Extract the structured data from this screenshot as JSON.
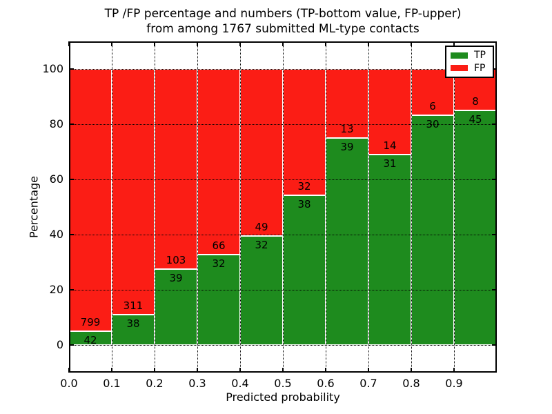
{
  "title": {
    "line1": "TP /FP percentage and numbers (TP-bottom value, FP-upper)",
    "line2": "from among 1767 submitted ML-type contacts"
  },
  "axes": {
    "xlabel": "Predicted probability",
    "ylabel": "Percentage",
    "x_tick_labels": [
      "0.0",
      "0.1",
      "0.2",
      "0.3",
      "0.4",
      "0.5",
      "0.6",
      "0.7",
      "0.8",
      "0.9"
    ],
    "x_tick_values": [
      0.0,
      0.1,
      0.2,
      0.3,
      0.4,
      0.5,
      0.6,
      0.7,
      0.8,
      0.9
    ],
    "y_tick_labels": [
      "0",
      "20",
      "40",
      "60",
      "80",
      "100"
    ],
    "y_tick_values": [
      0,
      20,
      40,
      60,
      80,
      100
    ],
    "xlim": [
      0.0,
      1.0
    ],
    "ylim": [
      -10,
      110
    ],
    "grid_style": "dotted",
    "grid_on": true
  },
  "legend": {
    "position": "upper-right",
    "items": [
      {
        "label": "TP",
        "color": "#1e8b1e"
      },
      {
        "label": "FP",
        "color": "#fb1d15"
      }
    ]
  },
  "chart_data": {
    "type": "bar",
    "stacked": true,
    "normalized": "each bar totals 100 percent",
    "bin_starts": [
      0.0,
      0.1,
      0.2,
      0.3,
      0.4,
      0.5,
      0.6,
      0.7,
      0.8,
      0.9
    ],
    "bin_width": 0.1,
    "total_contacts": 1767,
    "series": [
      {
        "name": "TP",
        "color": "#1e8b1e",
        "counts": [
          42,
          38,
          39,
          32,
          32,
          38,
          39,
          31,
          30,
          45
        ],
        "percent": [
          5.0,
          10.9,
          27.5,
          32.7,
          39.5,
          54.3,
          75.0,
          68.9,
          83.3,
          84.9
        ]
      },
      {
        "name": "FP",
        "color": "#fb1d15",
        "counts": [
          799,
          311,
          103,
          66,
          49,
          32,
          13,
          14,
          6,
          8
        ],
        "percent": [
          95.0,
          89.1,
          72.5,
          67.3,
          60.5,
          45.7,
          25.0,
          31.1,
          16.7,
          15.1
        ]
      }
    ]
  }
}
